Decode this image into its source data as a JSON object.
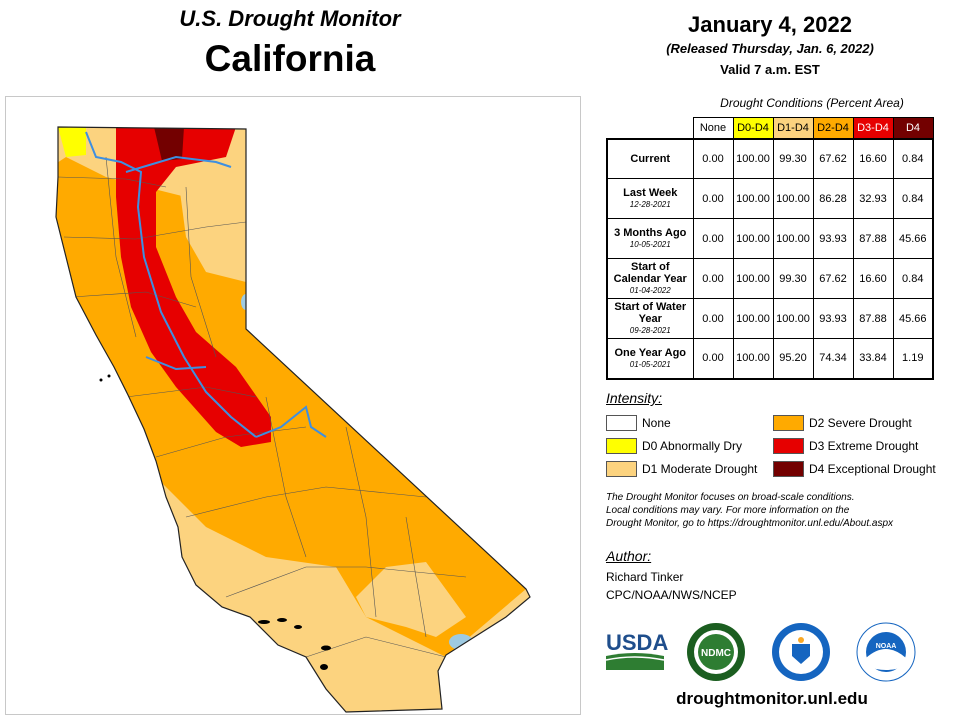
{
  "header": {
    "title": "U.S. Drought Monitor",
    "region": "California",
    "date": "January 4, 2022",
    "released": "(Released Thursday, Jan. 6, 2022)",
    "valid": "Valid 7 a.m. EST"
  },
  "table": {
    "title": "Drought Conditions (Percent Area)",
    "columns": [
      "None",
      "D0-D4",
      "D1-D4",
      "D2-D4",
      "D3-D4",
      "D4"
    ],
    "column_colors": [
      "#ffffff",
      "#ffff00",
      "#fcd37f",
      "#ffaa00",
      "#e60000",
      "#730000"
    ],
    "rows": [
      {
        "label": "Current",
        "date": "",
        "values": [
          "0.00",
          "100.00",
          "99.30",
          "67.62",
          "16.60",
          "0.84"
        ]
      },
      {
        "label": "Last Week",
        "date": "12-28-2021",
        "values": [
          "0.00",
          "100.00",
          "100.00",
          "86.28",
          "32.93",
          "0.84"
        ]
      },
      {
        "label": "3 Months Ago",
        "date": "10-05-2021",
        "values": [
          "0.00",
          "100.00",
          "100.00",
          "93.93",
          "87.88",
          "45.66"
        ]
      },
      {
        "label": "Start of Calendar Year",
        "date": "01-04-2022",
        "values": [
          "0.00",
          "100.00",
          "99.30",
          "67.62",
          "16.60",
          "0.84"
        ]
      },
      {
        "label": "Start of Water Year",
        "date": "09-28-2021",
        "values": [
          "0.00",
          "100.00",
          "100.00",
          "93.93",
          "87.88",
          "45.66"
        ]
      },
      {
        "label": "One Year Ago",
        "date": "01-05-2021",
        "values": [
          "0.00",
          "100.00",
          "95.20",
          "74.34",
          "33.84",
          "1.19"
        ]
      }
    ]
  },
  "legend": {
    "title": "Intensity:",
    "items": [
      {
        "label": "None",
        "color": "#ffffff"
      },
      {
        "label": "D0 Abnormally Dry",
        "color": "#ffff00"
      },
      {
        "label": "D1 Moderate Drought",
        "color": "#fcd37f"
      },
      {
        "label": "D2 Severe Drought",
        "color": "#ffaa00"
      },
      {
        "label": "D3 Extreme Drought",
        "color": "#e60000"
      },
      {
        "label": "D4 Exceptional Drought",
        "color": "#730000"
      }
    ]
  },
  "note": {
    "line1": "The Drought Monitor focuses on broad-scale conditions.",
    "line2": "Local conditions may vary. For more information on the",
    "line3": "Drought Monitor, go to https://droughtmonitor.unl.edu/About.aspx"
  },
  "author": {
    "title": "Author:",
    "name": "Richard Tinker",
    "org": "CPC/NOAA/NWS/NCEP"
  },
  "logos": {
    "usda": "USDA",
    "ndmc": "NDMC",
    "noaa": "NOAA"
  },
  "url": "droughtmonitor.unl.edu"
}
